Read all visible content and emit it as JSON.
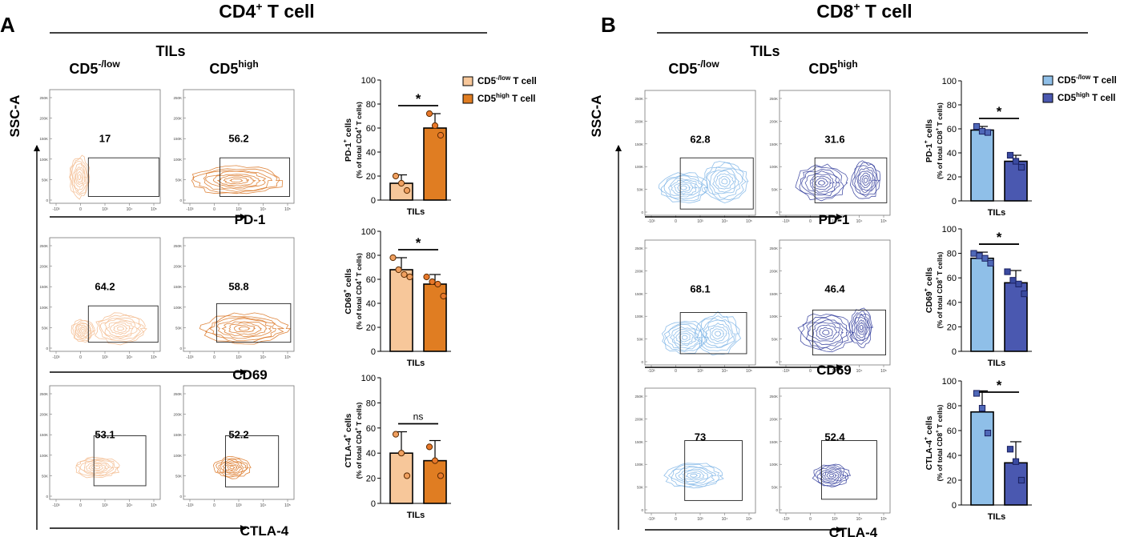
{
  "panels": [
    {
      "letter": "A",
      "title_main": "CD4",
      "title_sup": "+",
      "title_rest": " T cell",
      "tils": "TILs",
      "col_low_main": "CD5",
      "col_low_sup": "-/low",
      "col_high_main": "CD5",
      "col_high_sup": "high",
      "y_axis_label": "SSC-A",
      "flow_rows": [
        {
          "marker": "PD-1",
          "low_pct": "17",
          "high_pct": "56.2"
        },
        {
          "marker": "CD69",
          "low_pct": "64.2",
          "high_pct": "58.8"
        },
        {
          "marker": "CTLA-4",
          "low_pct": "53.1",
          "high_pct": "52.2"
        }
      ],
      "x_ticks": [
        "-10³",
        "0",
        "10³",
        "10⁴",
        "10⁵"
      ],
      "y_ticks": [
        "0",
        "50K",
        "100K",
        "150K",
        "200K",
        "250K"
      ],
      "colors": {
        "low": "#f7c79a",
        "high": "#e07d22",
        "flow_low": "#f3b88a",
        "flow_high": "#d9711c"
      },
      "legend": [
        {
          "main": "CD5",
          "sup": "-/low",
          "rest": " T cell"
        },
        {
          "main": "CD5",
          "sup": "high",
          "rest": " T cell"
        }
      ]
    },
    {
      "letter": "B",
      "title_main": "CD8",
      "title_sup": "+",
      "title_rest": " T cell",
      "tils": "TILs",
      "col_low_main": "CD5",
      "col_low_sup": "-/low",
      "col_high_main": "CD5",
      "col_high_sup": "high",
      "y_axis_label": "SSC-A",
      "flow_rows": [
        {
          "marker": "PD-1",
          "low_pct": "62.8",
          "high_pct": "31.6"
        },
        {
          "marker": "CD69",
          "low_pct": "68.1",
          "high_pct": "46.4"
        },
        {
          "marker": "CTLA-4",
          "low_pct": "73",
          "high_pct": "52.4"
        }
      ],
      "x_ticks": [
        "-10³",
        "0",
        "10³",
        "10⁴",
        "10⁵"
      ],
      "y_ticks": [
        "0",
        "50K",
        "100K",
        "150K",
        "200K",
        "250K"
      ],
      "colors": {
        "low": "#8fbfe8",
        "high": "#4a58b0",
        "flow_low": "#7db4e6",
        "flow_high": "#2f3a9a"
      },
      "legend": [
        {
          "main": "CD5",
          "sup": "-/low",
          "rest": " T cell"
        },
        {
          "main": "CD5",
          "sup": "high",
          "rest": " T cell"
        }
      ]
    }
  ],
  "chart_data": [
    {
      "type": "bar",
      "panel": "A",
      "marker_main": "PD-1",
      "marker_sup": "+",
      "ylabel_1": " cells",
      "ylabel_2": "(% of total CD4",
      "ylabel_2_sup": "+",
      "ylabel_2_rest": " T cells)",
      "xlabel": "TILs",
      "ylim": [
        0,
        100
      ],
      "yticks": [
        0,
        20,
        40,
        60,
        80,
        100
      ],
      "significance": "*",
      "series": [
        {
          "name": "CD5-/low T cell",
          "value": 14,
          "sd": 7,
          "points": [
            20,
            14,
            8
          ]
        },
        {
          "name": "CD5high T cell",
          "value": 60,
          "sd": 12,
          "points": [
            72,
            62,
            54
          ]
        }
      ]
    },
    {
      "type": "bar",
      "panel": "A",
      "marker_main": "CD69",
      "marker_sup": "+",
      "ylabel_1": " cells",
      "ylabel_2": "(% of total CD4",
      "ylabel_2_sup": "+",
      "ylabel_2_rest": " T cells)",
      "xlabel": "TILs",
      "ylim": [
        0,
        100
      ],
      "yticks": [
        0,
        20,
        40,
        60,
        80,
        100
      ],
      "significance": "*",
      "series": [
        {
          "name": "CD5-/low T cell",
          "value": 68,
          "sd": 10,
          "points": [
            78,
            68,
            64,
            62
          ]
        },
        {
          "name": "CD5high T cell",
          "value": 56,
          "sd": 8,
          "points": [
            62,
            58,
            56,
            46
          ]
        }
      ]
    },
    {
      "type": "bar",
      "panel": "A",
      "marker_main": "CTLA-4",
      "marker_sup": "+",
      "ylabel_1": " cells",
      "ylabel_2": "(% of total CD4",
      "ylabel_2_sup": "+",
      "ylabel_2_rest": " T cells)",
      "xlabel": "TILs",
      "ylim": [
        0,
        100
      ],
      "yticks": [
        0,
        20,
        40,
        60,
        80,
        100
      ],
      "significance": "ns",
      "series": [
        {
          "name": "CD5-/low T cell",
          "value": 40,
          "sd": 17,
          "points": [
            55,
            40,
            22
          ]
        },
        {
          "name": "CD5high T cell",
          "value": 34,
          "sd": 16,
          "points": [
            45,
            34,
            22
          ]
        }
      ]
    },
    {
      "type": "bar",
      "panel": "B",
      "marker_main": "PD-1",
      "marker_sup": "+",
      "ylabel_1": " cells",
      "ylabel_2": "(% of total CD8",
      "ylabel_2_sup": "+",
      "ylabel_2_rest": " T cells)",
      "xlabel": "TILs",
      "ylim": [
        0,
        100
      ],
      "yticks": [
        0,
        20,
        40,
        60,
        80,
        100
      ],
      "significance": "*",
      "series": [
        {
          "name": "CD5-/low T cell",
          "value": 59,
          "sd": 3,
          "points": [
            62,
            58,
            57
          ]
        },
        {
          "name": "CD5high T cell",
          "value": 33,
          "sd": 5,
          "points": [
            38,
            33,
            28
          ]
        }
      ]
    },
    {
      "type": "bar",
      "panel": "B",
      "marker_main": "CD69",
      "marker_sup": "+",
      "ylabel_1": " cells",
      "ylabel_2": "(% of total CD8",
      "ylabel_2_sup": "+",
      "ylabel_2_rest": " T cells)",
      "xlabel": "TILs",
      "ylim": [
        0,
        100
      ],
      "yticks": [
        0,
        20,
        40,
        60,
        80,
        100
      ],
      "significance": "*",
      "series": [
        {
          "name": "CD5-/low T cell",
          "value": 76,
          "sd": 5,
          "points": [
            80,
            78,
            76,
            72
          ]
        },
        {
          "name": "CD5high T cell",
          "value": 56,
          "sd": 10,
          "points": [
            65,
            58,
            55,
            47
          ]
        }
      ]
    },
    {
      "type": "bar",
      "panel": "B",
      "marker_main": "CTLA-4",
      "marker_sup": "+",
      "ylabel_1": " cells",
      "ylabel_2": "(% of total CD8",
      "ylabel_2_sup": "+",
      "ylabel_2_rest": " T cells)",
      "xlabel": "TILs",
      "ylim": [
        0,
        100
      ],
      "yticks": [
        0,
        20,
        40,
        60,
        80,
        100
      ],
      "significance": "*",
      "series": [
        {
          "name": "CD5-/low T cell",
          "value": 75,
          "sd": 17,
          "points": [
            90,
            78,
            58
          ]
        },
        {
          "name": "CD5high T cell",
          "value": 34,
          "sd": 17,
          "points": [
            45,
            35,
            20
          ]
        }
      ]
    }
  ]
}
